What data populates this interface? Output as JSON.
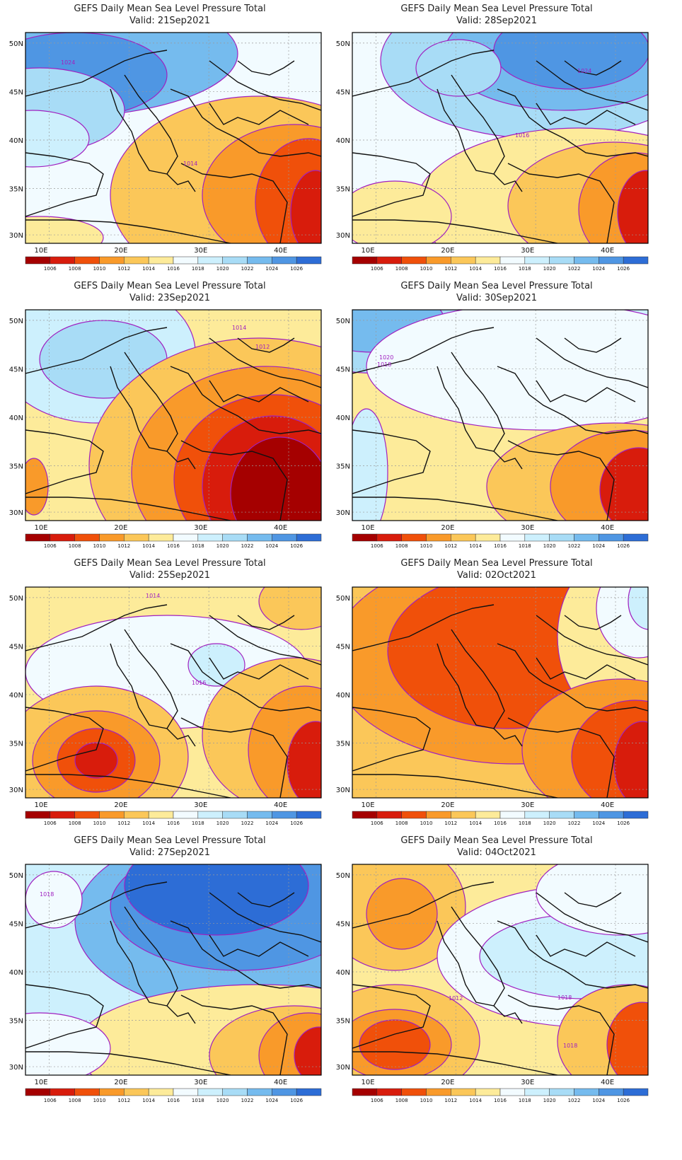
{
  "panel_title": "GEFS Daily Mean Sea Level Pressure Total",
  "colorbar": {
    "labels": [
      "1006",
      "1008",
      "1010",
      "1012",
      "1014",
      "1016",
      "1018",
      "1020",
      "1022",
      "1024",
      "1026"
    ],
    "colors": [
      "#a50000",
      "#d81c0c",
      "#f0500a",
      "#f99a2a",
      "#fbc759",
      "#fdeb9a",
      "#f2fbff",
      "#cdf0fd",
      "#a8dcf6",
      "#75bbee",
      "#4f96e3",
      "#2d6dd6"
    ]
  },
  "lon_ticks": [
    "10E",
    "20E",
    "30E",
    "40E"
  ],
  "lat_ticks": [
    "50N",
    "45N",
    "40N",
    "35N",
    "30N"
  ],
  "panels": [
    {
      "id": "p21sep",
      "valid": "Valid: 21Sep2021",
      "labels": [
        {
          "text": "1024"
        },
        {
          "text": "1014"
        }
      ]
    },
    {
      "id": "p28sep",
      "valid": "Valid: 28Sep2021",
      "labels": [
        {
          "text": "1024"
        },
        {
          "text": "1016"
        }
      ]
    },
    {
      "id": "p23sep",
      "valid": "Valid: 23Sep2021",
      "labels": [
        {
          "text": "1014"
        },
        {
          "text": "1012"
        }
      ]
    },
    {
      "id": "p30sep",
      "valid": "Valid: 30Sep2021",
      "labels": [
        {
          "text": "1020"
        },
        {
          "text": "1018"
        }
      ]
    },
    {
      "id": "p25sep",
      "valid": "Valid: 25Sep2021",
      "labels": [
        {
          "text": "1014"
        },
        {
          "text": "1016"
        }
      ]
    },
    {
      "id": "p02oct",
      "valid": "Valid: 02Oct2021",
      "labels": []
    },
    {
      "id": "p27sep",
      "valid": "Valid: 27Sep2021",
      "labels": [
        {
          "text": "1018"
        }
      ]
    },
    {
      "id": "p04oct",
      "valid": "Valid: 04Oct2021",
      "labels": [
        {
          "text": "1012"
        },
        {
          "text": "1018"
        },
        {
          "text": "1018"
        }
      ]
    }
  ]
}
